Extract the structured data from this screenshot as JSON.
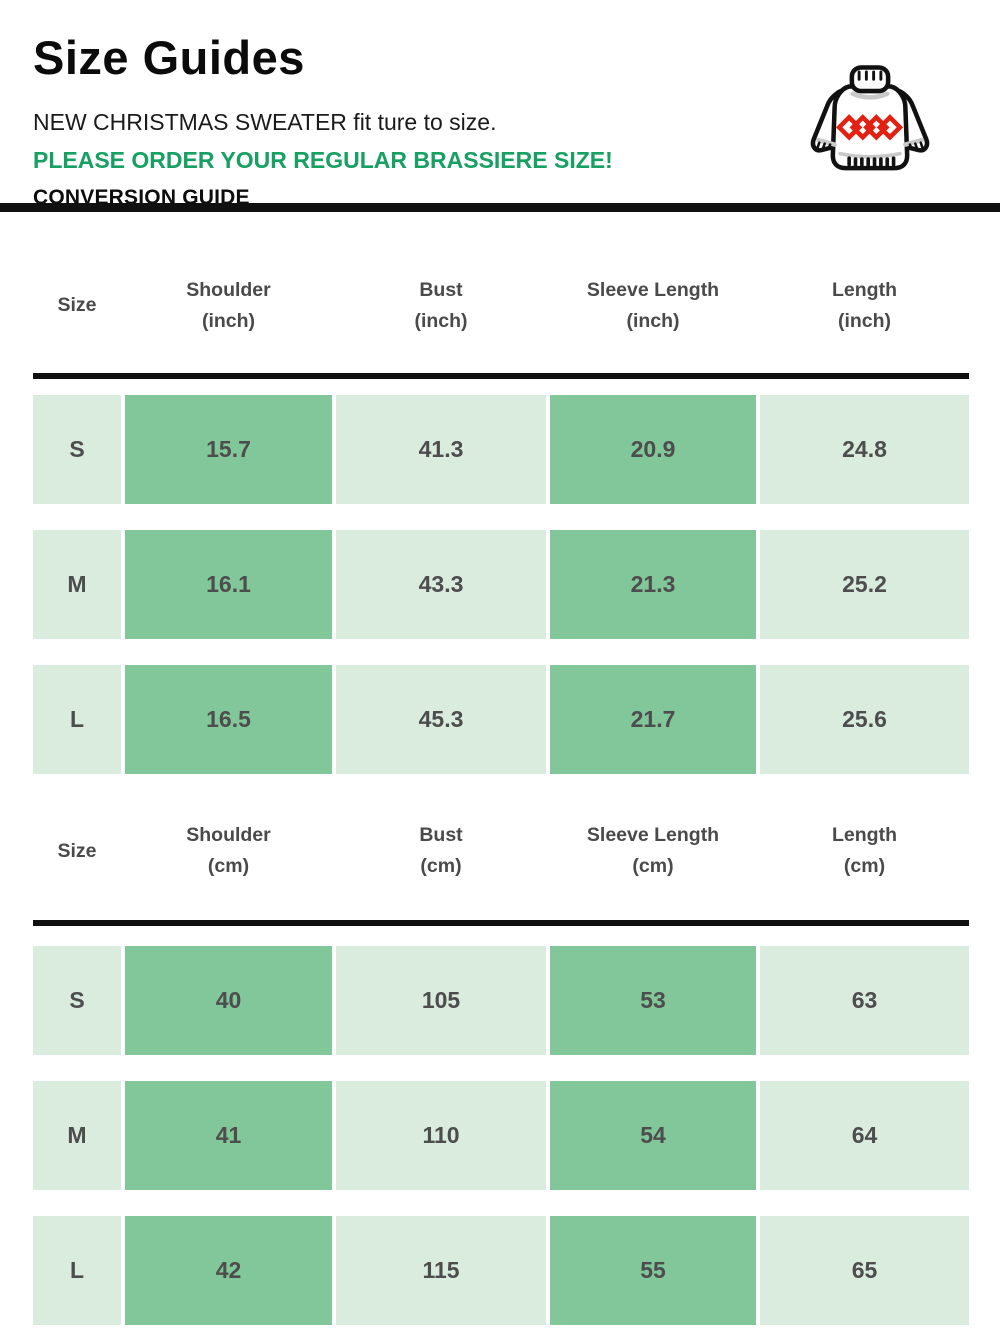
{
  "header": {
    "title": "Size Guides",
    "subtitle": "NEW CHRISTMAS SWEATER fit ture to size.",
    "highlight": "PLEASE ORDER YOUR REGULAR BRASSIERE SIZE!",
    "conversion_label": "CONVERSION GUIDE",
    "icon": "christmas-sweater-icon"
  },
  "colors": {
    "highlight_green": "#16A062",
    "cell_light_green": "#D9ECDE",
    "cell_dark_green": "#82C79A",
    "header_text_gray": "#4A4A4A",
    "cell_text_gray": "#4D4D4D",
    "divider_black": "#101010",
    "sweater_pattern_red": "#E32113"
  },
  "tables": [
    {
      "unit": "inch",
      "headers": [
        {
          "label": "Size",
          "sub": ""
        },
        {
          "label": "Shoulder",
          "sub": "(inch)"
        },
        {
          "label": "Bust",
          "sub": "(inch)"
        },
        {
          "label": "Sleeve Length",
          "sub": "(inch)"
        },
        {
          "label": "Length",
          "sub": "(inch)"
        }
      ],
      "rows": [
        {
          "size": "S",
          "values": [
            "15.7",
            "41.3",
            "20.9",
            "24.8"
          ]
        },
        {
          "size": "M",
          "values": [
            "16.1",
            "43.3",
            "21.3",
            "25.2"
          ]
        },
        {
          "size": "L",
          "values": [
            "16.5",
            "45.3",
            "21.7",
            "25.6"
          ]
        }
      ]
    },
    {
      "unit": "cm",
      "headers": [
        {
          "label": "Size",
          "sub": ""
        },
        {
          "label": "Shoulder",
          "sub": "(cm)"
        },
        {
          "label": "Bust",
          "sub": "(cm)"
        },
        {
          "label": "Sleeve Length",
          "sub": "(cm)"
        },
        {
          "label": "Length",
          "sub": "(cm)"
        }
      ],
      "rows": [
        {
          "size": "S",
          "values": [
            "40",
            "105",
            "53",
            "63"
          ]
        },
        {
          "size": "M",
          "values": [
            "41",
            "110",
            "54",
            "64"
          ]
        },
        {
          "size": "L",
          "values": [
            "42",
            "115",
            "55",
            "65"
          ]
        }
      ]
    }
  ]
}
